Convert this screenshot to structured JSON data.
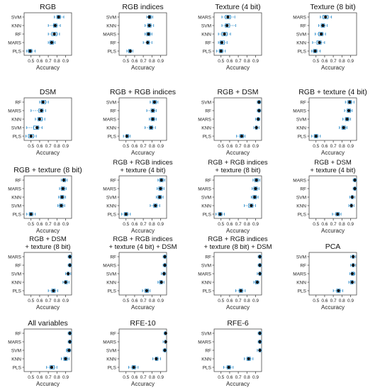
{
  "chart_data": {
    "type": "boxplot-panels",
    "xlabel": "Accuracy",
    "xlim": [
      0.42,
      0.97
    ],
    "xticks": [
      "0.5",
      "0.6",
      "0.7",
      "0.8",
      "0.9"
    ],
    "colors": {
      "box": "#2a8ac8",
      "median": "#111111",
      "whisker": "#2a8ac8"
    },
    "panels": [
      {
        "title": [
          "RGB"
        ],
        "categories": [
          "SVM",
          "KNN",
          "RF",
          "MARS",
          "PLS"
        ],
        "stats": [
          [
            0.77,
            0.8,
            0.82,
            0.84,
            0.88
          ],
          [
            0.7,
            0.76,
            0.78,
            0.8,
            0.84
          ],
          [
            0.7,
            0.74,
            0.77,
            0.8,
            0.83
          ],
          [
            0.7,
            0.72,
            0.74,
            0.76,
            0.78
          ],
          [
            0.45,
            0.47,
            0.49,
            0.51,
            0.55
          ]
        ]
      },
      {
        "title": [
          "RGB indices"
        ],
        "categories": [
          "SVM",
          "KNN",
          "MARS",
          "RF",
          "PLS"
        ],
        "stats": [
          [
            0.74,
            0.76,
            0.77,
            0.79,
            0.81
          ],
          [
            0.72,
            0.75,
            0.77,
            0.79,
            0.82
          ],
          [
            0.72,
            0.74,
            0.76,
            0.78,
            0.8
          ],
          [
            0.7,
            0.74,
            0.75,
            0.77,
            0.8
          ],
          [
            0.51,
            0.53,
            0.55,
            0.56,
            0.58
          ]
        ]
      },
      {
        "title": [
          "Texture (4 bit)"
        ],
        "categories": [
          "MARS",
          "SVM",
          "KNN",
          "RF",
          "PLS"
        ],
        "stats": [
          [
            0.51,
            0.55,
            0.58,
            0.61,
            0.66
          ],
          [
            0.51,
            0.55,
            0.57,
            0.6,
            0.67
          ],
          [
            0.47,
            0.51,
            0.54,
            0.57,
            0.61
          ],
          [
            0.47,
            0.49,
            0.51,
            0.54,
            0.57
          ],
          [
            0.45,
            0.48,
            0.5,
            0.52,
            0.55
          ]
        ]
      },
      {
        "title": [
          "Texture (8 bit)"
        ],
        "categories": [
          "MARS",
          "RF",
          "SVM",
          "KNN",
          "PLS"
        ],
        "stats": [
          [
            0.55,
            0.58,
            0.61,
            0.64,
            0.68
          ],
          [
            0.53,
            0.56,
            0.58,
            0.6,
            0.63
          ],
          [
            0.49,
            0.53,
            0.56,
            0.58,
            0.61
          ],
          [
            0.46,
            0.51,
            0.54,
            0.56,
            0.6
          ],
          [
            0.45,
            0.47,
            0.49,
            0.51,
            0.55
          ]
        ]
      },
      {
        "title": [
          "DSM"
        ],
        "categories": [
          "RF",
          "MARS",
          "KNN",
          "SVM",
          "PLS"
        ],
        "stats": [
          [
            0.6,
            0.62,
            0.64,
            0.67,
            0.7
          ],
          [
            0.5,
            0.59,
            0.62,
            0.64,
            0.67
          ],
          [
            0.55,
            0.58,
            0.6,
            0.63,
            0.66
          ],
          [
            0.45,
            0.53,
            0.57,
            0.59,
            0.63
          ],
          [
            0.44,
            0.47,
            0.5,
            0.53,
            0.56
          ]
        ]
      },
      {
        "title": [
          "RGB + RGB indices"
        ],
        "categories": [
          "SVM",
          "RF",
          "MARS",
          "KNN",
          "PLS"
        ],
        "stats": [
          [
            0.78,
            0.81,
            0.83,
            0.85,
            0.87
          ],
          [
            0.74,
            0.79,
            0.81,
            0.83,
            0.85
          ],
          [
            0.77,
            0.79,
            0.81,
            0.83,
            0.85
          ],
          [
            0.72,
            0.77,
            0.79,
            0.81,
            0.84
          ],
          [
            0.47,
            0.5,
            0.51,
            0.53,
            0.55
          ]
        ]
      },
      {
        "title": [
          "RGB + DSM"
        ],
        "categories": [
          "SVM",
          "RF",
          "MARS",
          "KNN",
          "PLS"
        ],
        "stats": [
          [
            0.92,
            0.93,
            0.94,
            0.95,
            0.96
          ],
          [
            0.92,
            0.93,
            0.94,
            0.95,
            0.96
          ],
          [
            0.9,
            0.92,
            0.93,
            0.94,
            0.95
          ],
          [
            0.88,
            0.9,
            0.91,
            0.92,
            0.94
          ],
          [
            0.68,
            0.72,
            0.74,
            0.76,
            0.78
          ]
        ]
      },
      {
        "title": [
          "RGB + texture (4 bit)"
        ],
        "categories": [
          "RF",
          "MARS",
          "SVM",
          "KNN",
          "PLS"
        ],
        "stats": [
          [
            0.84,
            0.87,
            0.89,
            0.91,
            0.94
          ],
          [
            0.83,
            0.86,
            0.88,
            0.9,
            0.92
          ],
          [
            0.81,
            0.84,
            0.86,
            0.88,
            0.9
          ],
          [
            0.77,
            0.8,
            0.82,
            0.84,
            0.86
          ],
          [
            0.45,
            0.48,
            0.5,
            0.52,
            0.55
          ]
        ]
      },
      {
        "title": [
          "RGB + texture (8 bit)"
        ],
        "categories": [
          "RF",
          "MARS",
          "KNN",
          "SVM",
          "PLS"
        ],
        "stats": [
          [
            0.85,
            0.87,
            0.88,
            0.9,
            0.92
          ],
          [
            0.83,
            0.85,
            0.87,
            0.89,
            0.91
          ],
          [
            0.82,
            0.84,
            0.86,
            0.88,
            0.9
          ],
          [
            0.81,
            0.83,
            0.85,
            0.87,
            0.89
          ],
          [
            0.45,
            0.48,
            0.5,
            0.52,
            0.55
          ]
        ]
      },
      {
        "title": [
          "RGB + RGB indices",
          "+ texture (4 bit)"
        ],
        "categories": [
          "RF",
          "MARS",
          "SVM",
          "KNN",
          "PLS"
        ],
        "stats": [
          [
            0.87,
            0.89,
            0.91,
            0.93,
            0.95
          ],
          [
            0.86,
            0.88,
            0.9,
            0.92,
            0.94
          ],
          [
            0.85,
            0.87,
            0.89,
            0.91,
            0.93
          ],
          [
            0.78,
            0.82,
            0.84,
            0.86,
            0.89
          ],
          [
            0.45,
            0.48,
            0.5,
            0.52,
            0.55
          ]
        ]
      },
      {
        "title": [
          "RGB + RGB indices",
          "+ texture (8 bit)"
        ],
        "categories": [
          "RF",
          "MARS",
          "SVM",
          "KNN",
          "PLS"
        ],
        "stats": [
          [
            0.87,
            0.89,
            0.91,
            0.93,
            0.95
          ],
          [
            0.86,
            0.88,
            0.9,
            0.92,
            0.94
          ],
          [
            0.85,
            0.87,
            0.89,
            0.91,
            0.93
          ],
          [
            0.77,
            0.82,
            0.85,
            0.87,
            0.9
          ],
          [
            0.44,
            0.47,
            0.49,
            0.51,
            0.54
          ]
        ]
      },
      {
        "title": [
          "RGB + DSM",
          "+ texture (4 bit)"
        ],
        "categories": [
          "MARS",
          "RF",
          "SVM",
          "KNN",
          "PLS"
        ],
        "stats": [
          [
            0.93,
            0.94,
            0.95,
            0.96,
            0.97
          ],
          [
            0.93,
            0.94,
            0.95,
            0.96,
            0.97
          ],
          [
            0.89,
            0.91,
            0.92,
            0.93,
            0.95
          ],
          [
            0.88,
            0.9,
            0.91,
            0.92,
            0.94
          ],
          [
            0.69,
            0.73,
            0.75,
            0.77,
            0.79
          ]
        ]
      },
      {
        "title": [
          "RGB + DSM",
          "+ texture (8 bit)"
        ],
        "categories": [
          "MARS",
          "RF",
          "SVM",
          "KNN",
          "PLS"
        ],
        "stats": [
          [
            0.93,
            0.94,
            0.95,
            0.96,
            0.97
          ],
          [
            0.93,
            0.94,
            0.95,
            0.96,
            0.97
          ],
          [
            0.9,
            0.92,
            0.93,
            0.94,
            0.96
          ],
          [
            0.87,
            0.89,
            0.9,
            0.92,
            0.94
          ],
          [
            0.7,
            0.74,
            0.76,
            0.78,
            0.81
          ]
        ]
      },
      {
        "title": [
          "RGB + RGB indices",
          "+ texture (4 bit) + DSM"
        ],
        "categories": [
          "RF",
          "MARS",
          "SVM",
          "KNN",
          "PLS"
        ],
        "stats": [
          [
            0.93,
            0.94,
            0.95,
            0.96,
            0.97
          ],
          [
            0.93,
            0.94,
            0.95,
            0.96,
            0.97
          ],
          [
            0.91,
            0.93,
            0.94,
            0.95,
            0.96
          ],
          [
            0.87,
            0.89,
            0.91,
            0.92,
            0.94
          ],
          [
            0.69,
            0.72,
            0.74,
            0.76,
            0.78
          ]
        ]
      },
      {
        "title": [
          "RGB + RGB indices",
          "+ texture (8 bit) + DSM"
        ],
        "categories": [
          "RF",
          "SVM",
          "MARS",
          "KNN",
          "PLS"
        ],
        "stats": [
          [
            0.93,
            0.94,
            0.95,
            0.96,
            0.97
          ],
          [
            0.93,
            0.94,
            0.95,
            0.96,
            0.97
          ],
          [
            0.92,
            0.94,
            0.95,
            0.96,
            0.97
          ],
          [
            0.88,
            0.9,
            0.92,
            0.93,
            0.94
          ],
          [
            0.67,
            0.71,
            0.73,
            0.75,
            0.78
          ]
        ]
      },
      {
        "title": [
          "PCA"
        ],
        "categories": [
          "SVM",
          "RF",
          "MARS",
          "KNN",
          "PLS"
        ],
        "stats": [
          [
            0.9,
            0.92,
            0.93,
            0.94,
            0.96
          ],
          [
            0.9,
            0.92,
            0.93,
            0.94,
            0.96
          ],
          [
            0.89,
            0.91,
            0.92,
            0.94,
            0.95
          ],
          [
            0.88,
            0.9,
            0.92,
            0.93,
            0.95
          ],
          [
            0.7,
            0.74,
            0.76,
            0.78,
            0.81
          ]
        ]
      },
      {
        "title": [
          "All variables"
        ],
        "categories": [
          "RF",
          "MARS",
          "SVM",
          "KNN",
          "PLS"
        ],
        "stats": [
          [
            0.93,
            0.94,
            0.95,
            0.96,
            0.97
          ],
          [
            0.93,
            0.94,
            0.95,
            0.96,
            0.97
          ],
          [
            0.91,
            0.92,
            0.94,
            0.95,
            0.96
          ],
          [
            0.85,
            0.88,
            0.9,
            0.92,
            0.94
          ],
          [
            0.68,
            0.72,
            0.74,
            0.77,
            0.8
          ]
        ]
      },
      {
        "title": [
          "RFE-10"
        ],
        "categories": [
          "RF",
          "MARS",
          "SVM",
          "KNN",
          "PLS"
        ],
        "stats": [
          [
            0.94,
            0.95,
            0.96,
            0.96,
            0.97
          ],
          [
            0.93,
            0.95,
            0.96,
            0.96,
            0.97
          ],
          [
            0.93,
            0.94,
            0.95,
            0.96,
            0.97
          ],
          [
            0.81,
            0.84,
            0.85,
            0.87,
            0.9
          ],
          [
            0.53,
            0.57,
            0.59,
            0.61,
            0.64
          ]
        ]
      },
      {
        "title": [
          "RFE-6"
        ],
        "categories": [
          "SVM",
          "MARS",
          "RF",
          "KNN",
          "PLS"
        ],
        "stats": [
          [
            0.93,
            0.94,
            0.95,
            0.96,
            0.97
          ],
          [
            0.93,
            0.94,
            0.95,
            0.96,
            0.97
          ],
          [
            0.92,
            0.94,
            0.95,
            0.96,
            0.97
          ],
          [
            0.77,
            0.8,
            0.82,
            0.84,
            0.87
          ],
          [
            0.53,
            0.57,
            0.59,
            0.61,
            0.64
          ]
        ]
      }
    ]
  }
}
